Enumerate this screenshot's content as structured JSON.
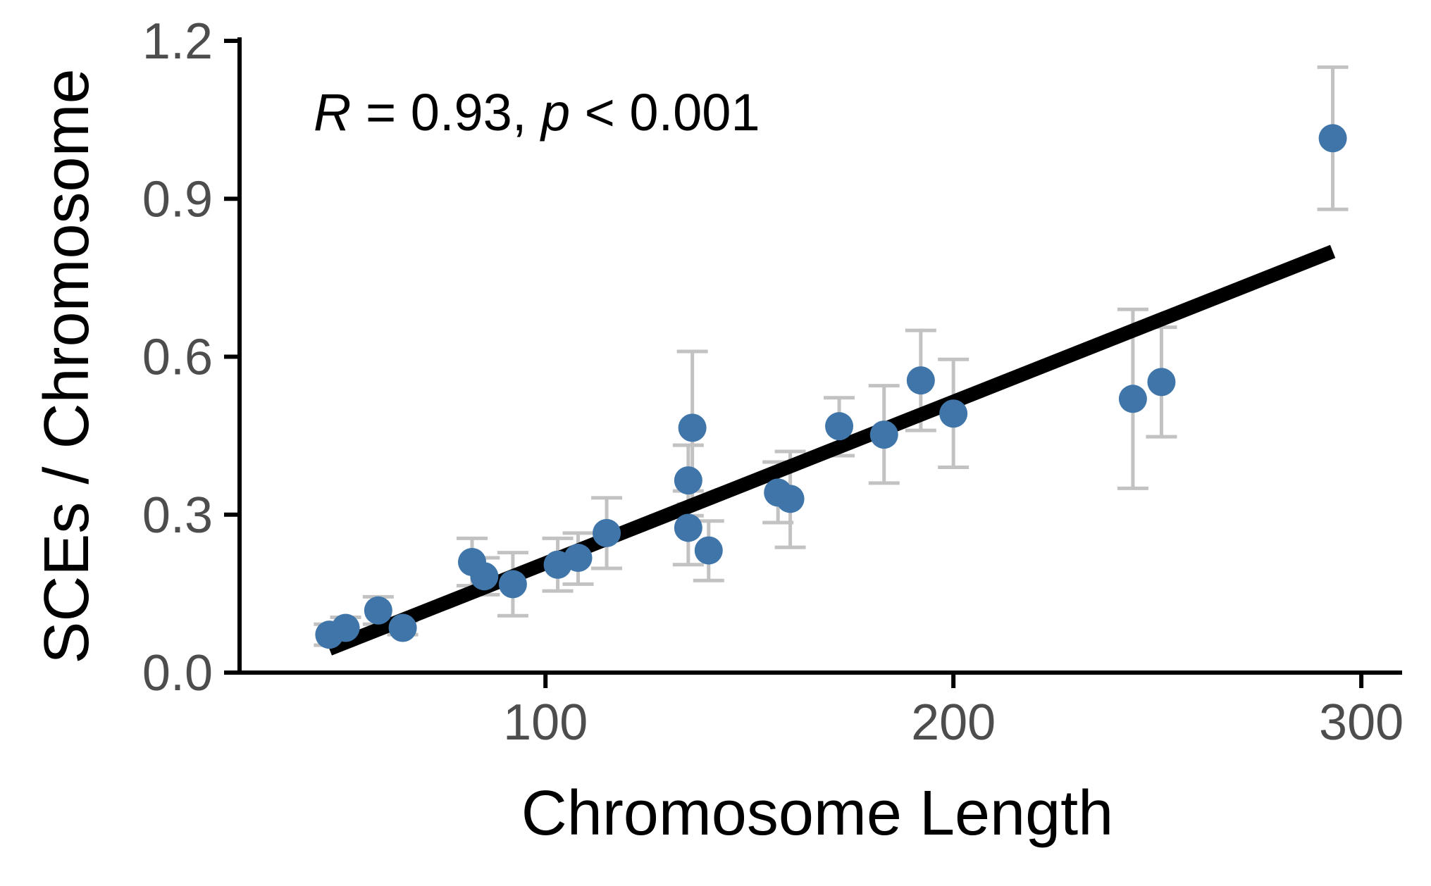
{
  "chart_data": {
    "type": "scatter",
    "title": "",
    "xlabel": "Chromosome Length",
    "ylabel": "SCEs / Chromosome",
    "xlim": [
      25,
      310
    ],
    "ylim": [
      0,
      1.2
    ],
    "x_ticks": [
      100,
      200,
      300
    ],
    "x_tick_labels": [
      "100",
      "200",
      "300"
    ],
    "y_ticks": [
      0.0,
      0.3,
      0.6,
      0.9,
      1.2
    ],
    "y_tick_labels": [
      "0.0",
      "0.3",
      "0.6",
      "0.9",
      "1.2"
    ],
    "grid": false,
    "legend": "none",
    "annotation": {
      "r_symbol": "R",
      "r_value_text": " = 0.93, ",
      "p_symbol": "p",
      "p_value_text": " < 0.001"
    },
    "points": [
      {
        "x": 47,
        "y": 0.072,
        "err_low": 0.052,
        "err_high": 0.092
      },
      {
        "x": 51,
        "y": 0.085,
        "err_low": 0.065,
        "err_high": 0.105
      },
      {
        "x": 59,
        "y": 0.118,
        "err_low": 0.092,
        "err_high": 0.144
      },
      {
        "x": 65,
        "y": 0.085,
        "err_low": 0.072,
        "err_high": 0.098
      },
      {
        "x": 82,
        "y": 0.21,
        "err_low": 0.165,
        "err_high": 0.255
      },
      {
        "x": 85,
        "y": 0.183,
        "err_low": 0.148,
        "err_high": 0.218
      },
      {
        "x": 92,
        "y": 0.168,
        "err_low": 0.108,
        "err_high": 0.228
      },
      {
        "x": 103,
        "y": 0.205,
        "err_low": 0.155,
        "err_high": 0.255
      },
      {
        "x": 108,
        "y": 0.218,
        "err_low": 0.168,
        "err_high": 0.265
      },
      {
        "x": 115,
        "y": 0.265,
        "err_low": 0.198,
        "err_high": 0.332
      },
      {
        "x": 135,
        "y": 0.365,
        "err_low": 0.298,
        "err_high": 0.432
      },
      {
        "x": 135,
        "y": 0.275,
        "err_low": 0.205,
        "err_high": 0.345
      },
      {
        "x": 136,
        "y": 0.465,
        "err_low": 0.32,
        "err_high": 0.61
      },
      {
        "x": 140,
        "y": 0.232,
        "err_low": 0.175,
        "err_high": 0.288
      },
      {
        "x": 157,
        "y": 0.342,
        "err_low": 0.285,
        "err_high": 0.4
      },
      {
        "x": 160,
        "y": 0.33,
        "err_low": 0.238,
        "err_high": 0.42
      },
      {
        "x": 172,
        "y": 0.468,
        "err_low": 0.412,
        "err_high": 0.522
      },
      {
        "x": 183,
        "y": 0.452,
        "err_low": 0.36,
        "err_high": 0.545
      },
      {
        "x": 192,
        "y": 0.555,
        "err_low": 0.46,
        "err_high": 0.65
      },
      {
        "x": 200,
        "y": 0.492,
        "err_low": 0.39,
        "err_high": 0.595
      },
      {
        "x": 244,
        "y": 0.52,
        "err_low": 0.35,
        "err_high": 0.69
      },
      {
        "x": 251,
        "y": 0.552,
        "err_low": 0.448,
        "err_high": 0.656
      },
      {
        "x": 293,
        "y": 1.015,
        "err_low": 0.88,
        "err_high": 1.15
      }
    ],
    "fit_line": {
      "x": [
        47,
        293
      ],
      "y": [
        0.045,
        0.8
      ]
    },
    "colors": {
      "point": "#3f75a9",
      "error_bar": "#c2c2c2",
      "fit_line": "#000000",
      "axis": "#000000",
      "tick_label": "#4d4d4d"
    }
  }
}
